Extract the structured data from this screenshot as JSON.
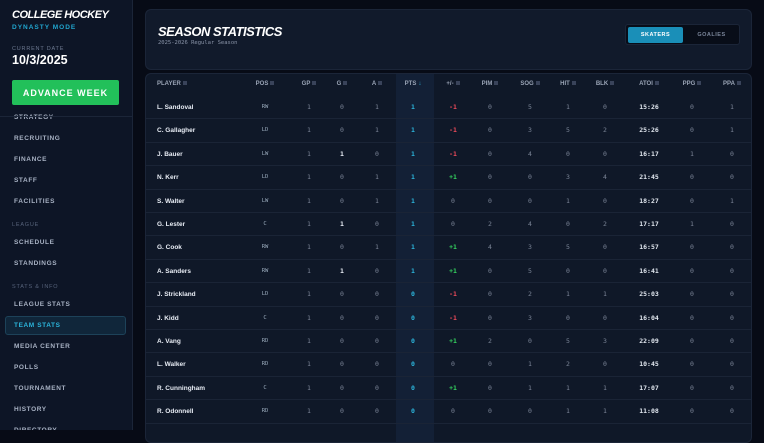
{
  "sidebar": {
    "title": "COLLEGE HOCKEY",
    "subtitle": "DYNASTY MODE",
    "date_label": "CURRENT DATE",
    "date": "10/3/2025",
    "advance_label": "ADVANCE WEEK",
    "items": [
      {
        "label": "STRATEGY"
      },
      {
        "label": "RECRUITING"
      },
      {
        "label": "FINANCE"
      },
      {
        "label": "STAFF"
      },
      {
        "label": "FACILITIES"
      },
      {
        "section": "LEAGUE"
      },
      {
        "label": "SCHEDULE"
      },
      {
        "label": "STANDINGS"
      },
      {
        "section": "STATS & INFO"
      },
      {
        "label": "LEAGUE STATS"
      },
      {
        "label": "TEAM STATS",
        "active": true
      },
      {
        "label": "MEDIA CENTER"
      },
      {
        "label": "POLLS"
      },
      {
        "label": "TOURNAMENT"
      },
      {
        "label": "HISTORY"
      },
      {
        "label": "DIRECTORY"
      }
    ]
  },
  "header": {
    "title": "SEASON STATISTICS",
    "season": "2025-2026 Regular Season",
    "tabs": [
      "SKATERS",
      "GOALIES"
    ],
    "active_tab": "SKATERS"
  },
  "colors": {
    "accent": "#1a8fb8",
    "advance": "#22c05a",
    "negative": "#ef4a5a",
    "positive": "#34d35f"
  },
  "table": {
    "columns": [
      "PLAYER",
      "POS",
      "GP",
      "G",
      "A",
      "PTS",
      "+/-",
      "PIM",
      "SOG",
      "HIT",
      "BLK",
      "ATOI",
      "PPG",
      "PPA"
    ],
    "sort_column": "PTS",
    "sort_direction": "desc",
    "rows": [
      [
        "L. Sandoval",
        "RW",
        "1",
        "0",
        "1",
        "1",
        "-1",
        "0",
        "5",
        "1",
        "0",
        "15:26",
        "0",
        "1"
      ],
      [
        "C. Gallagher",
        "LD",
        "1",
        "0",
        "1",
        "1",
        "-1",
        "0",
        "3",
        "5",
        "2",
        "25:26",
        "0",
        "1"
      ],
      [
        "J. Bauer",
        "LW",
        "1",
        "1",
        "0",
        "1",
        "-1",
        "0",
        "4",
        "0",
        "0",
        "16:17",
        "1",
        "0"
      ],
      [
        "N. Kerr",
        "LD",
        "1",
        "0",
        "1",
        "1",
        "+1",
        "0",
        "0",
        "3",
        "4",
        "21:45",
        "0",
        "0"
      ],
      [
        "S. Walter",
        "LW",
        "1",
        "0",
        "1",
        "1",
        "0",
        "0",
        "0",
        "1",
        "0",
        "18:27",
        "0",
        "1"
      ],
      [
        "G. Lester",
        "C",
        "1",
        "1",
        "0",
        "1",
        "0",
        "2",
        "4",
        "0",
        "2",
        "17:17",
        "1",
        "0"
      ],
      [
        "G. Cook",
        "RW",
        "1",
        "0",
        "1",
        "1",
        "+1",
        "4",
        "3",
        "5",
        "0",
        "16:57",
        "0",
        "0"
      ],
      [
        "A. Sanders",
        "RW",
        "1",
        "1",
        "0",
        "1",
        "+1",
        "0",
        "5",
        "0",
        "0",
        "16:41",
        "0",
        "0"
      ],
      [
        "J. Strickland",
        "LD",
        "1",
        "0",
        "0",
        "0",
        "-1",
        "0",
        "2",
        "1",
        "1",
        "25:03",
        "0",
        "0"
      ],
      [
        "J. Kidd",
        "C",
        "1",
        "0",
        "0",
        "0",
        "-1",
        "0",
        "3",
        "0",
        "0",
        "16:04",
        "0",
        "0"
      ],
      [
        "A. Vang",
        "RD",
        "1",
        "0",
        "0",
        "0",
        "+1",
        "2",
        "0",
        "5",
        "3",
        "22:09",
        "0",
        "0"
      ],
      [
        "L. Walker",
        "RD",
        "1",
        "0",
        "0",
        "0",
        "0",
        "0",
        "1",
        "2",
        "0",
        "10:45",
        "0",
        "0"
      ],
      [
        "R. Cunningham",
        "C",
        "1",
        "0",
        "0",
        "0",
        "+1",
        "0",
        "1",
        "1",
        "1",
        "17:07",
        "0",
        "0"
      ],
      [
        "R. Odonnell",
        "RD",
        "1",
        "0",
        "0",
        "0",
        "0",
        "0",
        "0",
        "1",
        "1",
        "11:08",
        "0",
        "0"
      ]
    ]
  }
}
